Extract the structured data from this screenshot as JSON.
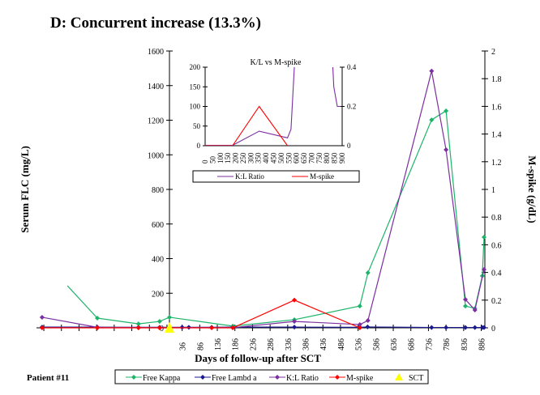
{
  "chart_data": [
    {
      "type": "line",
      "title": "D:  Concurrent increase (13.3%)",
      "xlabel": "Days of follow-up after SCT",
      "ylabel": "Serum FLC (mg/L)",
      "y2label": "M-spike (g/dL)",
      "footer": "Patient #11",
      "ylim": [
        0,
        1600
      ],
      "yticks": [
        0,
        200,
        400,
        600,
        800,
        1000,
        1200,
        1400,
        1600
      ],
      "y2lim": [
        0,
        2
      ],
      "y2ticks": [
        "0",
        "0.2",
        "0.4",
        "0.6",
        "0.8",
        "1",
        "1.2",
        "1.4",
        "1.6",
        "1.8",
        "2"
      ],
      "xlim": [
        -362,
        896
      ],
      "xticks": [
        36,
        86,
        136,
        186,
        236,
        286,
        336,
        386,
        436,
        486,
        536,
        586,
        636,
        686,
        736,
        786,
        836,
        886
      ],
      "series": [
        {
          "name": "Free Kappa",
          "color": "#1db46a",
          "axis": "left",
          "x": [
            -290,
            -205,
            -88,
            -28,
            0,
            180,
            355,
            541,
            564,
            745,
            786,
            841,
            868,
            889,
            894
          ],
          "y": [
            243,
            56,
            23,
            37,
            61,
            10,
            47,
            126,
            318,
            1202,
            1254,
            126,
            112,
            300,
            524
          ],
          "markers_from": 1
        },
        {
          "name": "Free Lambd a",
          "color": "#1a1a8c",
          "axis": "left",
          "x": [
            -362,
            -205,
            -88,
            -28,
            0,
            36,
            55,
            120,
            180,
            355,
            541,
            563,
            745,
            786,
            841,
            868,
            889,
            894
          ],
          "y": [
            4,
            4,
            3,
            3,
            3,
            3,
            3,
            3,
            4,
            4,
            3,
            5,
            2,
            2,
            2,
            2,
            2,
            2
          ]
        },
        {
          "name": "K:L Ratio",
          "color": "#7b2fa0",
          "axis": "left",
          "x": [
            -362,
            -205,
            -88,
            -28,
            0,
            180,
            355,
            541,
            564,
            745,
            786,
            841,
            868,
            894
          ],
          "y": [
            61,
            3,
            1,
            1,
            1,
            1,
            37,
            19,
            42,
            1484,
            1029,
            164,
            103,
            337
          ]
        },
        {
          "name": "M-spike",
          "color": "#ff0000",
          "axis": "right",
          "x": [
            -362,
            -205,
            -88,
            -28,
            120,
            180,
            355,
            541
          ],
          "y": [
            0,
            0,
            0,
            0,
            0,
            0,
            0.2,
            0
          ]
        },
        {
          "name": "SCT",
          "color": "#ffff00",
          "marker": "triangle",
          "x": [
            0
          ],
          "y": [
            0
          ]
        }
      ]
    },
    {
      "type": "line",
      "title": "K/L vs M-spike",
      "ylim": [
        0,
        200
      ],
      "yticks": [
        0,
        50,
        100,
        150,
        200
      ],
      "y2lim": [
        0,
        0.4
      ],
      "y2ticks": [
        "0",
        "0.2",
        "0.4"
      ],
      "xlim": [
        0,
        900
      ],
      "xticks": [
        0,
        50,
        100,
        150,
        200,
        250,
        300,
        350,
        400,
        450,
        500,
        550,
        600,
        650,
        700,
        750,
        800,
        850,
        900
      ],
      "series": [
        {
          "name": "K:L Ratio",
          "color": "#7b2fa0",
          "axis": "left",
          "x": [
            0,
            180,
            355,
            541,
            564,
            590,
            835,
            845,
            868,
            889
          ],
          "y": [
            1,
            1,
            37,
            20,
            42,
            230,
            230,
            150,
            100,
            100
          ]
        },
        {
          "name": "M-spike",
          "color": "#ff0000",
          "axis": "right",
          "x": [
            0,
            180,
            355,
            541
          ],
          "y": [
            0,
            0,
            0.2,
            0
          ]
        }
      ]
    }
  ]
}
